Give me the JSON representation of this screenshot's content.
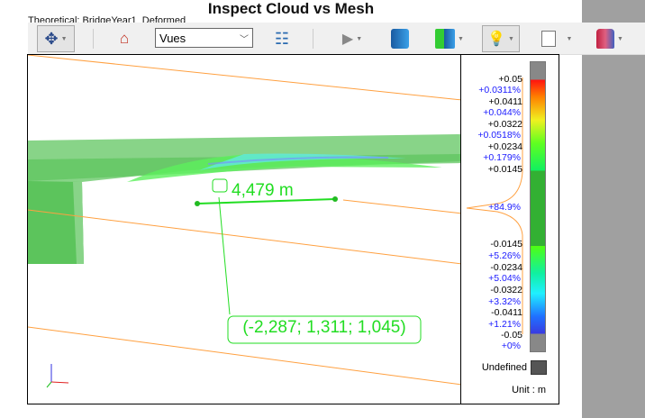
{
  "title": "Inspect Cloud vs Mesh",
  "subtitle": "Theoretical: BridgeYear1_Deformed",
  "toolbar": {
    "items": [
      "navigation-icon",
      "home-icon",
      "tree-icon",
      "play-icon",
      "cube-icon",
      "cube-color-icon",
      "lamp-icon",
      "square-icon",
      "color-icon"
    ],
    "view_select": "Vues"
  },
  "viewport": {
    "distance_label": "4,479 m",
    "coordinate_label": "(-2,287; 1,311; 1,045)"
  },
  "legend": {
    "labels": [
      "+0.05",
      "+0.0311%",
      "+0.0411",
      "+0.044%",
      "+0.0322",
      "+0.0518%",
      "+0.0234",
      "+0.179%",
      "+0.0145",
      "+84.9%",
      "-0.0145",
      "+5.26%",
      "-0.0234",
      "+5.04%",
      "-0.0322",
      "+3.32%",
      "-0.0411",
      "+1.21%",
      "-0.05",
      "+0%"
    ],
    "undefined_label": "Undefined",
    "unit_label": "Unit : m",
    "colors": {
      "undefined": "#555555",
      "out_of_range": "#888888",
      "in_tolerance": "#33b033"
    }
  }
}
